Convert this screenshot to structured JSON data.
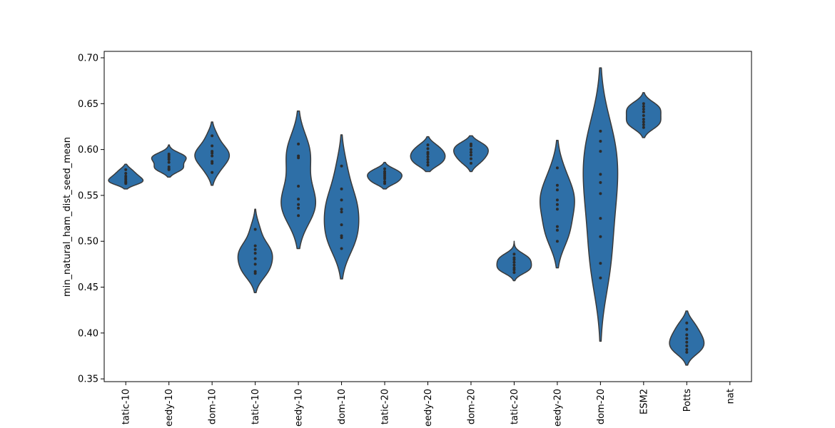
{
  "chart_data": {
    "type": "violin",
    "title": "",
    "xlabel": "",
    "ylabel": "min_natural_ham_dist_seed_mean",
    "ylim": [
      0.347,
      0.707
    ],
    "yticks": [
      0.35,
      0.4,
      0.45,
      0.5,
      0.55,
      0.6,
      0.65,
      0.7
    ],
    "ytick_labels": [
      "0.35",
      "0.40",
      "0.45",
      "0.50",
      "0.55",
      "0.60",
      "0.65",
      "0.70"
    ],
    "grid": false,
    "legend": "none",
    "color": "#2e6fa7",
    "edge_color": "#3a3a3a",
    "categories": [
      "tatic-10",
      "eedy-10",
      "dom-10",
      "tatic-10",
      "eedy-10",
      "dom-10",
      "tatic-20",
      "eedy-20",
      "dom-20",
      "tatic-20",
      "eedy-20",
      "dom-20",
      "ESM2",
      "Potts",
      "nat"
    ],
    "violins": [
      {
        "min": 0.557,
        "max": 0.584,
        "points": [
          0.578,
          0.574,
          0.571,
          0.569,
          0.567,
          0.565,
          0.564,
          0.563
        ]
      },
      {
        "min": 0.57,
        "max": 0.605,
        "points": [
          0.595,
          0.593,
          0.591,
          0.589,
          0.586,
          0.581,
          0.579,
          0.578
        ]
      },
      {
        "min": 0.561,
        "max": 0.63,
        "points": [
          0.615,
          0.604,
          0.598,
          0.596,
          0.593,
          0.587,
          0.585,
          0.575
        ]
      },
      {
        "min": 0.444,
        "max": 0.535,
        "points": [
          0.513,
          0.495,
          0.491,
          0.487,
          0.481,
          0.475,
          0.467,
          0.465
        ]
      },
      {
        "min": 0.492,
        "max": 0.642,
        "points": [
          0.606,
          0.593,
          0.591,
          0.56,
          0.546,
          0.54,
          0.536,
          0.528
        ]
      },
      {
        "min": 0.459,
        "max": 0.616,
        "points": [
          0.582,
          0.557,
          0.545,
          0.535,
          0.532,
          0.518,
          0.506,
          0.504,
          0.492
        ]
      },
      {
        "min": 0.557,
        "max": 0.586,
        "points": [
          0.579,
          0.576,
          0.574,
          0.572,
          0.57,
          0.568,
          0.565,
          0.563
        ]
      },
      {
        "min": 0.576,
        "max": 0.614,
        "points": [
          0.605,
          0.601,
          0.597,
          0.595,
          0.592,
          0.589,
          0.586,
          0.583
        ]
      },
      {
        "min": 0.576,
        "max": 0.615,
        "points": [
          0.606,
          0.604,
          0.6,
          0.597,
          0.594,
          0.59,
          0.585
        ]
      },
      {
        "min": 0.457,
        "max": 0.5,
        "points": [
          0.486,
          0.482,
          0.48,
          0.477,
          0.474,
          0.471,
          0.469,
          0.466
        ]
      },
      {
        "min": 0.471,
        "max": 0.61,
        "points": [
          0.58,
          0.561,
          0.556,
          0.545,
          0.54,
          0.535,
          0.516,
          0.512,
          0.5
        ]
      },
      {
        "min": 0.391,
        "max": 0.689,
        "points": [
          0.62,
          0.609,
          0.598,
          0.573,
          0.564,
          0.552,
          0.525,
          0.505,
          0.476,
          0.46
        ]
      },
      {
        "min": 0.613,
        "max": 0.662,
        "points": [
          0.65,
          0.647,
          0.644,
          0.641,
          0.637,
          0.633,
          0.63,
          0.627,
          0.624
        ]
      },
      {
        "min": 0.365,
        "max": 0.424,
        "points": [
          0.411,
          0.404,
          0.398,
          0.394,
          0.39,
          0.386,
          0.382,
          0.379
        ]
      },
      null
    ]
  }
}
